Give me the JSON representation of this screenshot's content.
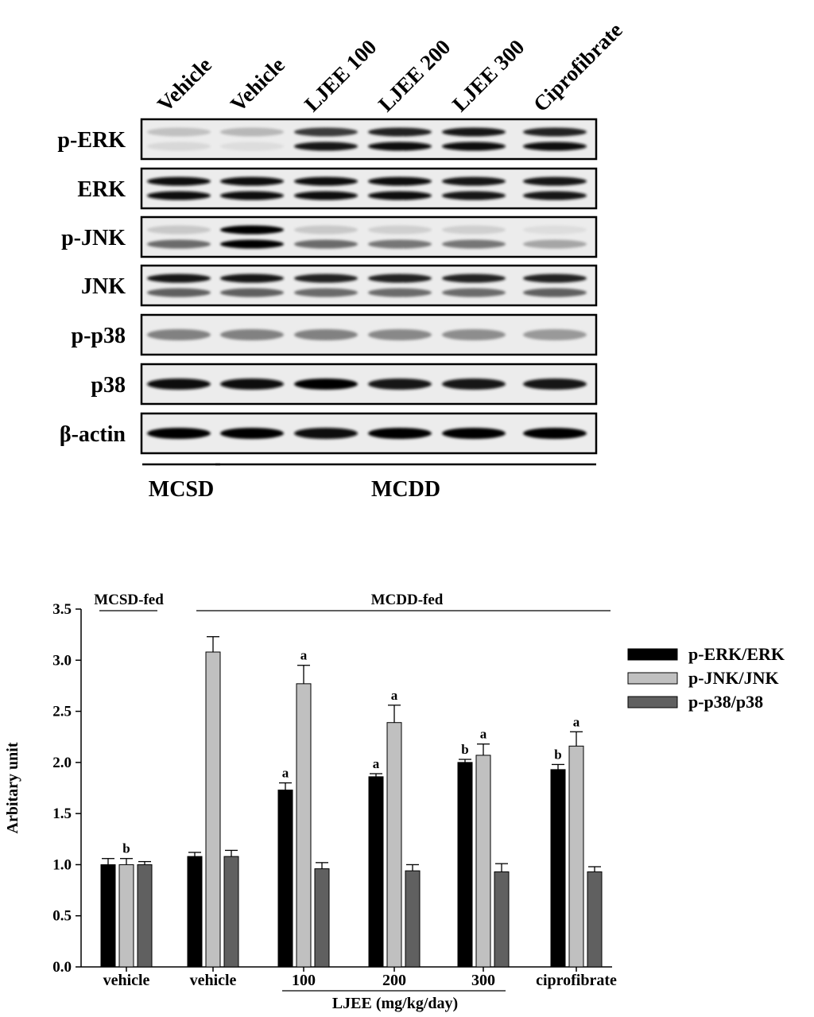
{
  "blot": {
    "lanes": [
      "Vehicle",
      "Vehicle",
      "LJEE 100",
      "LJEE 200",
      "LJEE 300",
      "Ciprofibrate"
    ],
    "rows": [
      {
        "label": "p-ERK",
        "pattern": "double",
        "intensity": [
          [
            0.18,
            0.08
          ],
          [
            0.22,
            0.06
          ],
          [
            0.75,
            0.92
          ],
          [
            0.85,
            0.95
          ],
          [
            0.9,
            0.95
          ],
          [
            0.85,
            0.95
          ]
        ]
      },
      {
        "label": "ERK",
        "pattern": "double",
        "intensity": [
          [
            0.95,
            0.95
          ],
          [
            0.95,
            0.95
          ],
          [
            0.95,
            0.95
          ],
          [
            0.95,
            0.95
          ],
          [
            0.92,
            0.92
          ],
          [
            0.92,
            0.92
          ]
        ]
      },
      {
        "label": "p-JNK",
        "pattern": "double",
        "intensity": [
          [
            0.15,
            0.55
          ],
          [
            0.98,
            0.98
          ],
          [
            0.15,
            0.55
          ],
          [
            0.12,
            0.5
          ],
          [
            0.12,
            0.5
          ],
          [
            0.06,
            0.3
          ]
        ]
      },
      {
        "label": "JNK",
        "pattern": "double",
        "intensity": [
          [
            0.9,
            0.6
          ],
          [
            0.9,
            0.6
          ],
          [
            0.85,
            0.55
          ],
          [
            0.85,
            0.55
          ],
          [
            0.85,
            0.55
          ],
          [
            0.85,
            0.6
          ]
        ]
      },
      {
        "label": "p-p38",
        "pattern": "single",
        "intensity": [
          [
            0.45
          ],
          [
            0.45
          ],
          [
            0.45
          ],
          [
            0.42
          ],
          [
            0.4
          ],
          [
            0.35
          ]
        ]
      },
      {
        "label": "p38",
        "pattern": "single",
        "intensity": [
          [
            0.95
          ],
          [
            0.95
          ],
          [
            0.98
          ],
          [
            0.92
          ],
          [
            0.92
          ],
          [
            0.9
          ]
        ]
      },
      {
        "label": "β-actin",
        "pattern": "single",
        "intensity": [
          [
            0.98
          ],
          [
            0.98
          ],
          [
            0.95
          ],
          [
            0.98
          ],
          [
            0.98
          ],
          [
            0.98
          ]
        ]
      }
    ],
    "groups": [
      {
        "label": "MCSD",
        "lanes": [
          0,
          0
        ]
      },
      {
        "label": "MCDD",
        "lanes": [
          1,
          5
        ]
      }
    ]
  },
  "chart_data": {
    "type": "bar",
    "ylabel": "Arbitary unit",
    "ylim": [
      0,
      3.5
    ],
    "yticks": [
      "0.0",
      "0.5",
      "1.0",
      "1.5",
      "2.0",
      "2.5",
      "3.0",
      "3.5"
    ],
    "categories": [
      "vehicle",
      "vehicle",
      "100",
      "200",
      "300",
      "ciprofibrate"
    ],
    "group_labels": [
      {
        "label": "MCSD-fed",
        "categories": [
          0,
          0
        ]
      },
      {
        "label": "MCDD-fed",
        "categories": [
          1,
          5
        ]
      }
    ],
    "xgroup_label": {
      "label": "LJEE (mg/kg/day)",
      "categories": [
        2,
        4
      ]
    },
    "legend_position": "right",
    "series": [
      {
        "name": "p-ERK/ERK",
        "color": "#000000",
        "values": [
          1.0,
          1.08,
          1.73,
          1.86,
          2.0,
          1.93
        ],
        "errors": [
          0.06,
          0.04,
          0.07,
          0.03,
          0.03,
          0.05
        ],
        "annotations": [
          "",
          "",
          "a",
          "a",
          "b",
          "b"
        ]
      },
      {
        "name": "p-JNK/JNK",
        "color": "#c0c0c0",
        "values": [
          1.0,
          3.08,
          2.77,
          2.39,
          2.07,
          2.16
        ],
        "errors": [
          0.06,
          0.15,
          0.18,
          0.17,
          0.11,
          0.14
        ],
        "annotations": [
          "b",
          "",
          "a",
          "a",
          "a",
          "a"
        ]
      },
      {
        "name": "p-p38/p38",
        "color": "#606060",
        "values": [
          1.0,
          1.08,
          0.96,
          0.94,
          0.93,
          0.93
        ],
        "errors": [
          0.03,
          0.06,
          0.06,
          0.06,
          0.08,
          0.05
        ],
        "annotations": [
          "",
          "",
          "",
          "",
          "",
          ""
        ]
      }
    ]
  }
}
